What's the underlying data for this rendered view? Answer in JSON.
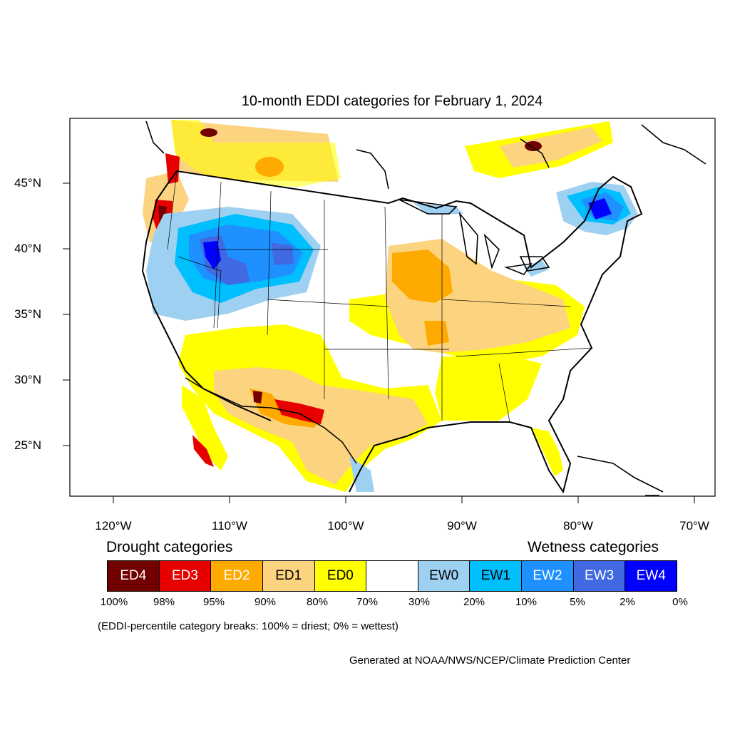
{
  "title": "10-month EDDI categories for February 1, 2024",
  "map": {
    "latitude_labels": [
      "45°N",
      "40°N",
      "35°N",
      "30°N",
      "25°N"
    ],
    "longitude_labels": [
      "120°W",
      "110°W",
      "100°W",
      "90°W",
      "80°W",
      "70°W"
    ],
    "extent": {
      "lon": [
        -124,
        -68.5
      ],
      "lat": [
        21,
        49.8
      ]
    }
  },
  "legend": {
    "drought_heading": "Drought categories",
    "wetness_heading": "Wetness categories",
    "categories": [
      {
        "label": "ED4",
        "color": "#730000",
        "text_color": "#ffffff"
      },
      {
        "label": "ED3",
        "color": "#e60000",
        "text_color": "#ffffff"
      },
      {
        "label": "ED2",
        "color": "#ffaa00",
        "text_color": "#ffffff"
      },
      {
        "label": "ED1",
        "color": "#fcd37f",
        "text_color": "#000000"
      },
      {
        "label": "ED0",
        "color": "#ffff00",
        "text_color": "#000000"
      },
      {
        "label": "",
        "color": "#ffffff",
        "text_color": "#000000"
      },
      {
        "label": "EW0",
        "color": "#9ed0f2",
        "text_color": "#000000"
      },
      {
        "label": "EW1",
        "color": "#00bfff",
        "text_color": "#000000"
      },
      {
        "label": "EW2",
        "color": "#1e90ff",
        "text_color": "#ffffff"
      },
      {
        "label": "EW3",
        "color": "#4169e1",
        "text_color": "#ffffff"
      },
      {
        "label": "EW4",
        "color": "#0000ff",
        "text_color": "#ffffff"
      }
    ],
    "breaks": [
      "100%",
      "98%",
      "95%",
      "90%",
      "80%",
      "70%",
      "30%",
      "20%",
      "10%",
      "5%",
      "2%",
      "0%"
    ]
  },
  "note": "(EDDI-percentile category breaks: 100% = driest; 0% = wettest)",
  "credit": "Generated at NOAA/NWS/NCEP/Climate Prediction Center"
}
